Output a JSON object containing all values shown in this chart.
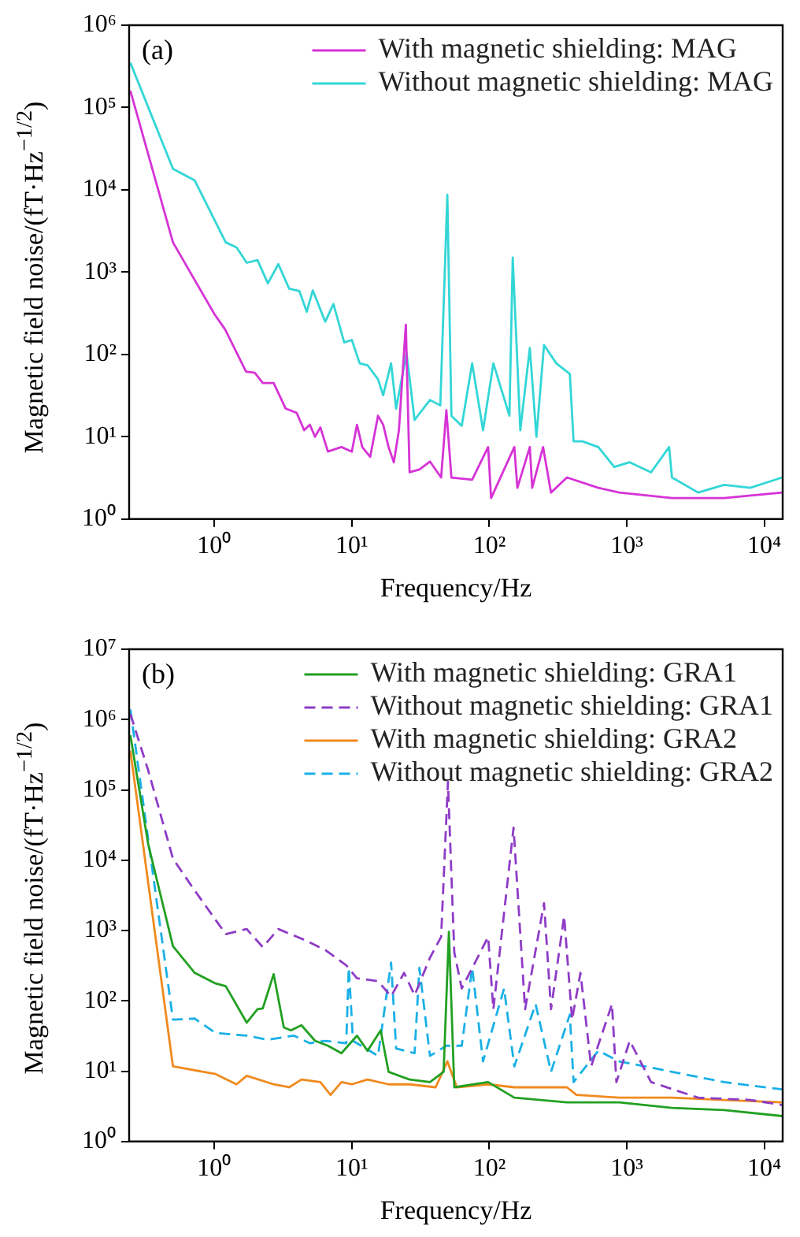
{
  "chart_data": [
    {
      "type": "line",
      "annotations": [
        "(a)"
      ],
      "xlabel": "Frequency/Hz",
      "ylabel": "Magnetic field noise/(fT·Hz$^{−1/2}$)",
      "log": "xy",
      "legend": "top right",
      "marker": "none",
      "xlim": [
        0.24,
        13600
      ],
      "xticks": [
        {
          "value": 1,
          "label": "10⁰"
        },
        {
          "value": 10,
          "label": "10¹"
        },
        {
          "value": 100,
          "label": "10²"
        },
        {
          "value": 1000,
          "label": "10³"
        },
        {
          "value": 10000,
          "label": "10⁴"
        }
      ],
      "ylim": [
        1,
        1000000
      ],
      "yticks": [
        {
          "value": 1,
          "label": "10⁰"
        },
        {
          "value": 10,
          "label": "10¹"
        },
        {
          "value": 100,
          "label": "10²"
        },
        {
          "value": 1000,
          "label": "10³"
        },
        {
          "value": 10000,
          "label": "10⁴"
        },
        {
          "value": 100000,
          "label": "10⁵"
        },
        {
          "value": 1000000,
          "label": "10⁶"
        }
      ],
      "series": [
        {
          "name": "With magnetic shielding: MAG",
          "color": "#d633d6",
          "x": [
            0.245,
            0.5,
            1,
            1.2,
            1.7,
            1.97,
            2.25,
            2.7,
            3.3,
            3.97,
            4.5,
            4.95,
            5.4,
            5.9,
            6.7,
            8.4,
            10,
            10.9,
            11.9,
            13.6,
            15.5,
            16.9,
            18.5,
            20.2,
            22,
            24.7,
            26.3,
            31,
            37,
            44.6,
            48.7,
            53,
            75,
            98,
            103,
            152,
            160,
            197,
            205,
            246,
            281,
            367,
            620,
            880,
            2130,
            5100,
            13500
          ],
          "values": [
            160000,
            2300,
            310,
            200,
            62,
            60,
            45,
            45,
            22,
            19.5,
            12,
            14,
            10,
            13,
            6.6,
            7.5,
            6.6,
            14,
            7.5,
            5.7,
            18,
            14,
            7.5,
            4.9,
            12,
            230,
            3.7,
            4,
            5,
            3.2,
            21,
            3.2,
            3,
            7.5,
            1.8,
            7.5,
            2.4,
            7.5,
            2.4,
            7.5,
            2.1,
            3.2,
            2.4,
            2.1,
            1.8,
            1.8,
            2.1
          ]
        },
        {
          "name": "Without magnetic shielding: MAG",
          "color": "#33d6d6",
          "x": [
            0.245,
            0.5,
            0.72,
            1.21,
            1.45,
            1.72,
            2.06,
            2.45,
            2.92,
            3.5,
            4.15,
            4.7,
            5.2,
            6.4,
            7.35,
            8.8,
            10,
            11.4,
            13,
            15.5,
            16.9,
            19.3,
            21,
            25,
            28.6,
            37,
            44,
            49.5,
            53,
            63,
            75,
            90,
            107,
            140,
            148,
            168,
            197,
            220,
            250,
            307,
            385,
            410,
            475,
            620,
            810,
            1050,
            1500,
            2030,
            2130,
            3300,
            5100,
            7900,
            13500
          ],
          "values": [
            350000,
            18000,
            13000,
            2300,
            2000,
            1300,
            1400,
            730,
            1250,
            630,
            590,
            330,
            600,
            250,
            410,
            140,
            150,
            78,
            74,
            50,
            32,
            78,
            22,
            104,
            16,
            28,
            24,
            8700,
            18,
            13.6,
            78,
            12,
            78,
            18,
            1500,
            12,
            120,
            10,
            130,
            78,
            58,
            8.8,
            8.8,
            7.5,
            4.3,
            4.9,
            3.7,
            7.5,
            3.2,
            2.1,
            2.6,
            2.4,
            3.2
          ]
        }
      ]
    },
    {
      "type": "line",
      "annotations": [
        "(b)"
      ],
      "xlabel": "Frequency/Hz",
      "ylabel": "Magnetic field noise/(fT·Hz$^{−1/2}$)",
      "log": "xy",
      "legend": "top right",
      "marker": "none",
      "xlim": [
        0.24,
        13600
      ],
      "xticks": [
        {
          "value": 1,
          "label": "10⁰"
        },
        {
          "value": 10,
          "label": "10¹"
        },
        {
          "value": 100,
          "label": "10²"
        },
        {
          "value": 1000,
          "label": "10³"
        },
        {
          "value": 10000,
          "label": "10⁴"
        }
      ],
      "ylim": [
        1,
        10000000
      ],
      "yticks": [
        {
          "value": 1,
          "label": "10⁰"
        },
        {
          "value": 10,
          "label": "10¹"
        },
        {
          "value": 100,
          "label": "10²"
        },
        {
          "value": 1000,
          "label": "10³"
        },
        {
          "value": 10000,
          "label": "10⁴"
        },
        {
          "value": 100000,
          "label": "10⁵"
        },
        {
          "value": 1000000,
          "label": "10⁶"
        },
        {
          "value": 10000000,
          "label": "10⁷"
        }
      ],
      "series": [
        {
          "name": "With magnetic shielding: GRA1",
          "color": "#22a022",
          "x": [
            0.245,
            0.33,
            0.5,
            0.72,
            1.02,
            1.21,
            1.72,
            2.06,
            2.25,
            2.7,
            3.2,
            3.6,
            4.3,
            5.4,
            6.7,
            8.4,
            10.9,
            13,
            16.2,
            18.5,
            26.3,
            37,
            46.5,
            50.8,
            55.6,
            98,
            152,
            367,
            880,
            2130,
            5100,
            13500
          ],
          "values": [
            600000,
            17000,
            600,
            250,
            177,
            162,
            49,
            76,
            78,
            240,
            42,
            38,
            45,
            27,
            23,
            18,
            32,
            19.5,
            38,
            9.8,
            7.6,
            7,
            9.8,
            960,
            5.9,
            7,
            4.2,
            3.6,
            3.6,
            3,
            2.8,
            2.3
          ]
        },
        {
          "name": "Without magnetic shielding: GRA1",
          "color": "#8e3cc6",
          "line_style": "dashed",
          "x": [
            0.245,
            0.33,
            0.5,
            0.72,
            1.21,
            1.72,
            2.25,
            2.92,
            4.5,
            6.4,
            9.1,
            10.9,
            15.5,
            19.3,
            24,
            28.6,
            37,
            44.6,
            50,
            55.6,
            63,
            98,
            107,
            150,
            182,
            250,
            281,
            350,
            400,
            460,
            550,
            780,
            840,
            1050,
            1500,
            3300,
            7900,
            13500
          ],
          "values": [
            1200000,
            190000,
            10500,
            3700,
            890,
            1050,
            580,
            1050,
            740,
            530,
            320,
            210,
            190,
            116,
            250,
            120,
            410,
            810,
            130000,
            490,
            150,
            810,
            76,
            29000,
            76,
            2450,
            76,
            1600,
            54,
            250,
            11.7,
            90,
            7,
            27,
            7,
            4.2,
            3.9,
            3.3
          ]
        },
        {
          "name": "With magnetic shielding: GRA2",
          "color": "#f08a1e",
          "x": [
            0.245,
            0.5,
            1.02,
            1.45,
            1.72,
            2.7,
            3.5,
            4.3,
            5.9,
            7,
            8.4,
            10,
            13,
            18.5,
            26.3,
            40.7,
            49.5,
            58,
            98,
            152,
            367,
            430,
            880,
            2130,
            5100,
            13500
          ],
          "values": [
            360000,
            11.7,
            9.1,
            6.5,
            8.6,
            6.5,
            5.9,
            7.6,
            7,
            4.6,
            7,
            6.5,
            7.6,
            6.5,
            6.5,
            5.9,
            13.8,
            5.9,
            6.5,
            5.9,
            5.9,
            4.6,
            4.2,
            4.2,
            3.9,
            3.6
          ]
        },
        {
          "name": "Without magnetic shielding: GRA2",
          "color": "#1ab0e6",
          "line_style": "dashed",
          "x": [
            0.245,
            0.33,
            0.5,
            0.72,
            1.02,
            1.72,
            2.45,
            3.8,
            4.95,
            6.4,
            9.1,
            9.5,
            10.2,
            15.5,
            19.3,
            21,
            28.6,
            31,
            37,
            48.7,
            63,
            75,
            90,
            128,
            152,
            217,
            281,
            385,
            410,
            620,
            880,
            2130,
            5100,
            13500
          ],
          "values": [
            1400000,
            20000,
            54,
            56,
            35,
            32,
            28,
            32,
            25,
            27,
            25,
            295,
            27,
            16.5,
            350,
            21,
            18,
            295,
            16.5,
            23,
            23,
            295,
            13.8,
            150,
            11.7,
            90,
            9.8,
            64,
            7,
            19.5,
            13.8,
            9.8,
            7,
            5.5
          ]
        }
      ]
    }
  ]
}
